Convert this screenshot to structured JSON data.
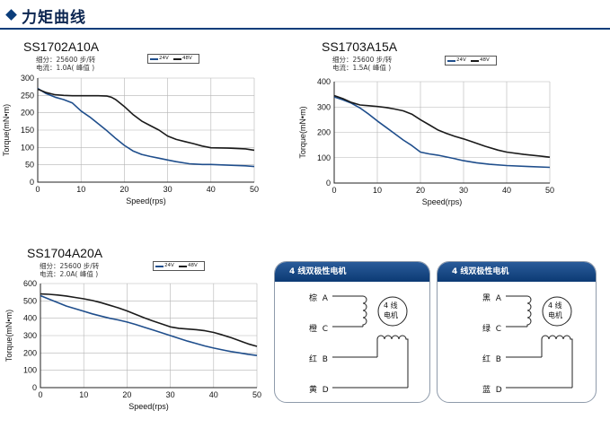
{
  "header": {
    "title": "力矩曲线"
  },
  "colors": {
    "v24": "#1f4e8c",
    "v48": "#1a1a1a",
    "grid": "#b5b5b5",
    "panel": "#14457f"
  },
  "chart_data": [
    {
      "type": "line",
      "title": "SS1702A10A",
      "subdivision": "细分：25600 步/转",
      "current": "电流：1.0A( 峰值 )",
      "xlabel": "Speed(rps)",
      "ylabel": "Torque(mN•m)",
      "xlim": [
        0,
        50
      ],
      "ylim": [
        0,
        300
      ],
      "xticks": [
        "0",
        "10",
        "20",
        "30",
        "40",
        "50"
      ],
      "yticks": [
        "0",
        "50",
        "100",
        "150",
        "200",
        "250",
        "300"
      ],
      "grid": true,
      "legend_position": "top",
      "series": [
        {
          "name": "24V",
          "color": "#1f4e8c",
          "x": [
            0,
            2,
            4,
            6,
            8,
            10,
            12,
            14,
            16,
            18,
            20,
            22,
            24,
            26,
            28,
            30,
            32,
            35,
            38,
            40,
            44,
            48,
            50
          ],
          "y": [
            270,
            255,
            245,
            238,
            228,
            205,
            188,
            168,
            148,
            126,
            106,
            90,
            80,
            74,
            69,
            64,
            59,
            53,
            51,
            51,
            49,
            47,
            45
          ]
        },
        {
          "name": "48V",
          "color": "#1a1a1a",
          "x": [
            0,
            2,
            4,
            6,
            8,
            10,
            12,
            14,
            16,
            17,
            18,
            20,
            22,
            24,
            26,
            28,
            30,
            32,
            34,
            36,
            38,
            40,
            44,
            48,
            50
          ],
          "y": [
            268,
            258,
            252,
            250,
            249,
            249,
            249,
            249,
            248,
            245,
            238,
            218,
            195,
            176,
            163,
            150,
            133,
            123,
            117,
            111,
            104,
            99,
            98,
            96,
            92
          ]
        }
      ]
    },
    {
      "type": "line",
      "title": "SS1703A15A",
      "subdivision": "细分：25600 步/转",
      "current": "电流：1.5A( 峰值 )",
      "xlabel": "Speed(rps)",
      "ylabel": "Torque(mN•m)",
      "xlim": [
        0,
        50
      ],
      "ylim": [
        0,
        400
      ],
      "xticks": [
        "0",
        "10",
        "20",
        "30",
        "40",
        "50"
      ],
      "yticks": [
        "0",
        "100",
        "200",
        "300",
        "400"
      ],
      "grid": true,
      "legend_position": "top",
      "series": [
        {
          "name": "24V",
          "color": "#1f4e8c",
          "x": [
            0,
            2,
            4,
            6,
            8,
            10,
            12,
            14,
            16,
            18,
            20,
            22,
            24,
            26,
            28,
            30,
            33,
            36,
            40,
            45,
            50
          ],
          "y": [
            340,
            328,
            315,
            296,
            272,
            245,
            220,
            195,
            170,
            148,
            122,
            115,
            110,
            103,
            96,
            88,
            80,
            74,
            69,
            65,
            62
          ]
        },
        {
          "name": "48V",
          "color": "#1a1a1a",
          "x": [
            0,
            2,
            4,
            6,
            8,
            10,
            12,
            14,
            16,
            18,
            20,
            22,
            24,
            26,
            28,
            30,
            32,
            35,
            38,
            40,
            44,
            48,
            50
          ],
          "y": [
            345,
            333,
            318,
            308,
            305,
            302,
            298,
            292,
            285,
            272,
            250,
            230,
            210,
            196,
            184,
            174,
            163,
            145,
            130,
            122,
            113,
            106,
            102
          ]
        }
      ]
    },
    {
      "type": "line",
      "title": "SS1704A20A",
      "subdivision": "细分：25600 步/转",
      "current": "电流：2.0A( 峰值 )",
      "xlabel": "Speed(rps)",
      "ylabel": "Torque(mN•m)",
      "xlim": [
        0,
        50
      ],
      "ylim": [
        0,
        600
      ],
      "xticks": [
        "0",
        "10",
        "20",
        "30",
        "40",
        "50"
      ],
      "yticks": [
        "0",
        "100",
        "200",
        "300",
        "400",
        "500",
        "600"
      ],
      "grid": true,
      "legend_position": "top",
      "series": [
        {
          "name": "24V",
          "color": "#1f4e8c",
          "x": [
            0,
            2,
            4,
            6,
            8,
            10,
            12,
            14,
            16,
            18,
            20,
            22,
            24,
            26,
            28,
            30,
            32,
            34,
            36,
            38,
            40,
            42,
            44,
            46,
            48,
            50
          ],
          "y": [
            530,
            510,
            490,
            470,
            455,
            440,
            425,
            412,
            400,
            390,
            378,
            364,
            348,
            332,
            316,
            300,
            284,
            268,
            254,
            240,
            228,
            218,
            208,
            200,
            192,
            185
          ]
        },
        {
          "name": "48V",
          "color": "#1a1a1a",
          "x": [
            0,
            2,
            4,
            6,
            8,
            10,
            12,
            14,
            16,
            18,
            20,
            22,
            24,
            26,
            28,
            30,
            32,
            34,
            36,
            38,
            40,
            42,
            44,
            46,
            48,
            50
          ],
          "y": [
            540,
            538,
            534,
            528,
            520,
            512,
            502,
            490,
            475,
            460,
            442,
            422,
            402,
            384,
            367,
            350,
            342,
            338,
            334,
            328,
            318,
            304,
            288,
            270,
            252,
            238
          ]
        }
      ]
    }
  ],
  "wiring": [
    {
      "title": "4 线双极性电机",
      "motor_label_1": "4 线",
      "motor_label_2": "电机",
      "wires": [
        {
          "color": "棕",
          "terminal": "A"
        },
        {
          "color": "橙",
          "terminal": "C"
        },
        {
          "color": "红",
          "terminal": "B"
        },
        {
          "color": "黄",
          "terminal": "D"
        }
      ]
    },
    {
      "title": "4 线双极性电机",
      "motor_label_1": "4 线",
      "motor_label_2": "电机",
      "wires": [
        {
          "color": "黑",
          "terminal": "A"
        },
        {
          "color": "绿",
          "terminal": "C"
        },
        {
          "color": "红",
          "terminal": "B"
        },
        {
          "color": "蓝",
          "terminal": "D"
        }
      ]
    }
  ]
}
